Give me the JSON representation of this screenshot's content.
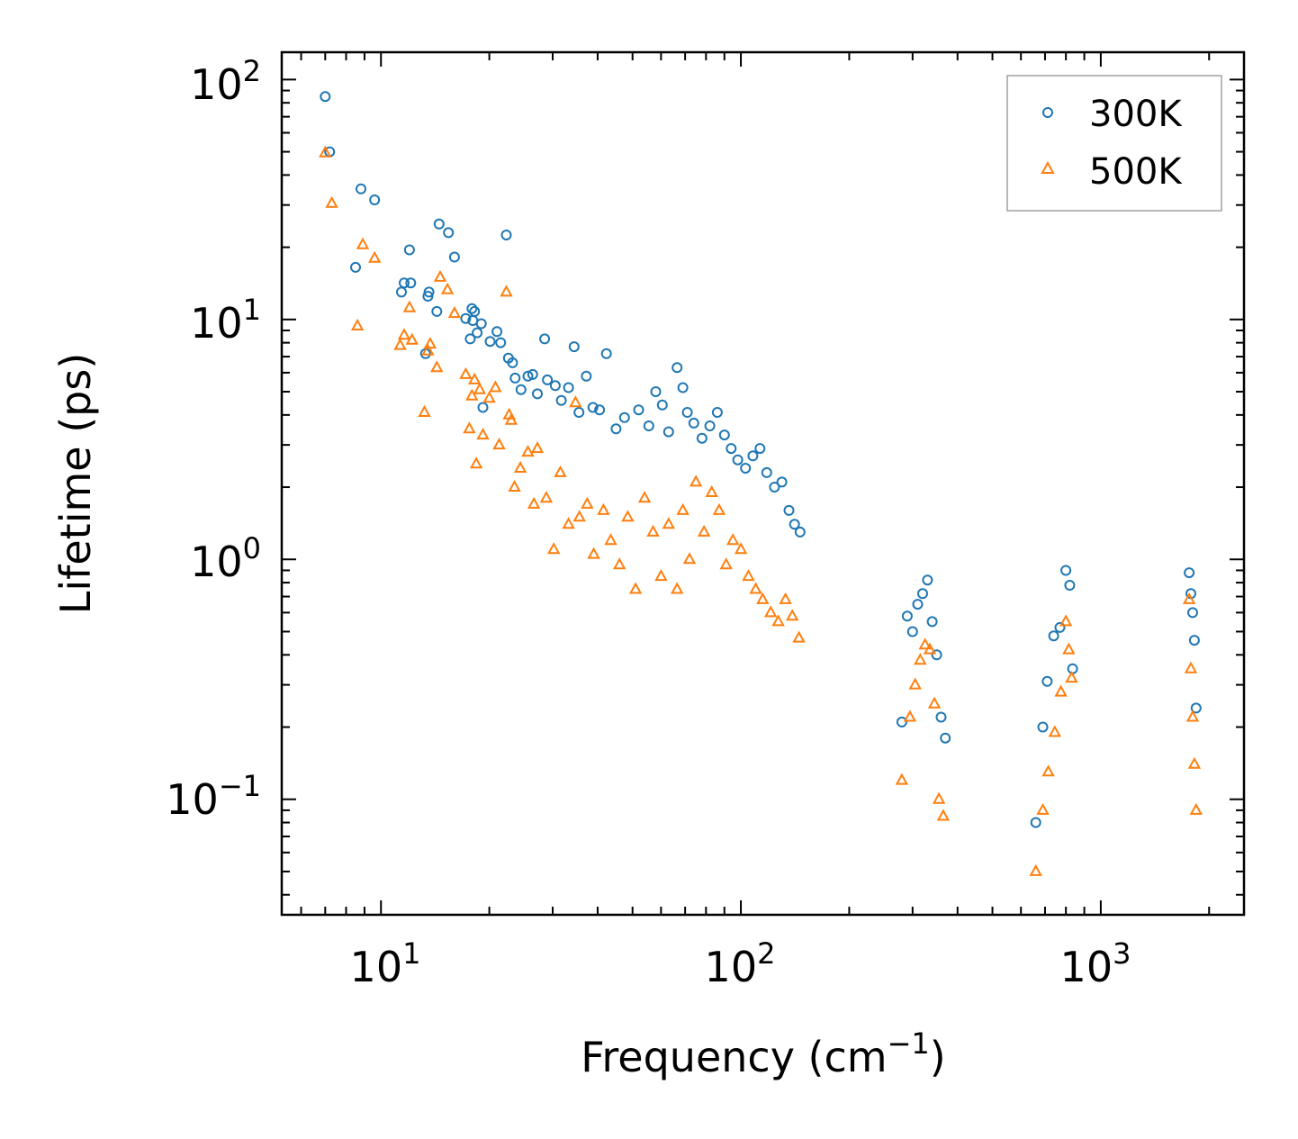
{
  "chart_data": {
    "type": "scatter",
    "title": "",
    "xlabel": "Frequency (cm",
    "xlabel_sup": "−1",
    "xlabel_close": ")",
    "ylabel": "Lifetime (ps)",
    "xscale": "log",
    "yscale": "log",
    "xlim": [
      5.3,
      2500
    ],
    "ylim": [
      0.033,
      130
    ],
    "legend_position": "top-right",
    "x_ticks": [
      {
        "value": 10,
        "base": "10",
        "exp": "1"
      },
      {
        "value": 100,
        "base": "10",
        "exp": "2"
      },
      {
        "value": 1000,
        "base": "10",
        "exp": "3"
      }
    ],
    "y_ticks": [
      {
        "value": 0.1,
        "base": "10",
        "exp": "−1"
      },
      {
        "value": 1,
        "base": "10",
        "exp": "0"
      },
      {
        "value": 10,
        "base": "10",
        "exp": "1"
      },
      {
        "value": 100,
        "base": "10",
        "exp": "2"
      }
    ],
    "series": [
      {
        "name": "300K",
        "color": "#1f77b4",
        "marker": "circle",
        "points": [
          [
            7.0,
            85
          ],
          [
            7.2,
            50
          ],
          [
            8.5,
            16.5
          ],
          [
            8.8,
            35
          ],
          [
            9.6,
            31.5
          ],
          [
            11.4,
            13
          ],
          [
            11.6,
            14.2
          ],
          [
            12.0,
            19.5
          ],
          [
            12.1,
            14.2
          ],
          [
            13.3,
            7.2
          ],
          [
            13.5,
            12.5
          ],
          [
            13.6,
            13.0
          ],
          [
            14.3,
            10.8
          ],
          [
            14.5,
            25
          ],
          [
            15.4,
            23
          ],
          [
            16.0,
            18.2
          ],
          [
            17.2,
            10.1
          ],
          [
            17.7,
            8.3
          ],
          [
            17.9,
            11.1
          ],
          [
            18.0,
            9.9
          ],
          [
            18.2,
            10.8
          ],
          [
            18.5,
            8.8
          ],
          [
            19.0,
            9.6
          ],
          [
            19.2,
            4.3
          ],
          [
            20.1,
            8.1
          ],
          [
            21.0,
            8.9
          ],
          [
            21.5,
            8.0
          ],
          [
            22.3,
            22.5
          ],
          [
            22.6,
            6.9
          ],
          [
            23.2,
            6.6
          ],
          [
            23.6,
            5.7
          ],
          [
            24.5,
            5.1
          ],
          [
            25.6,
            5.8
          ],
          [
            26.4,
            5.9
          ],
          [
            27.2,
            4.9
          ],
          [
            28.5,
            8.3
          ],
          [
            29.0,
            5.6
          ],
          [
            30.5,
            5.3
          ],
          [
            31.7,
            4.6
          ],
          [
            33.2,
            5.2
          ],
          [
            34.4,
            7.7
          ],
          [
            35.5,
            4.1
          ],
          [
            37.2,
            5.8
          ],
          [
            38.8,
            4.3
          ],
          [
            40.5,
            4.2
          ],
          [
            42.3,
            7.2
          ],
          [
            45.0,
            3.5
          ],
          [
            47.5,
            3.9
          ],
          [
            52.0,
            4.2
          ],
          [
            55.5,
            3.6
          ],
          [
            58.0,
            5.0
          ],
          [
            60.5,
            4.4
          ],
          [
            63.0,
            3.4
          ],
          [
            66.5,
            6.3
          ],
          [
            69.0,
            5.2
          ],
          [
            71.0,
            4.1
          ],
          [
            74.0,
            3.7
          ],
          [
            78.0,
            3.2
          ],
          [
            82.0,
            3.6
          ],
          [
            86.0,
            4.1
          ],
          [
            90.0,
            3.3
          ],
          [
            94.0,
            2.9
          ],
          [
            98.0,
            2.6
          ],
          [
            103.0,
            2.4
          ],
          [
            108.0,
            2.7
          ],
          [
            113.0,
            2.9
          ],
          [
            118.0,
            2.3
          ],
          [
            124.0,
            2.0
          ],
          [
            130.0,
            2.1
          ],
          [
            136.0,
            1.6
          ],
          [
            141.0,
            1.4
          ],
          [
            146.0,
            1.3
          ],
          [
            280.0,
            0.21
          ],
          [
            290.0,
            0.58
          ],
          [
            300.0,
            0.5
          ],
          [
            310.0,
            0.65
          ],
          [
            320.0,
            0.72
          ],
          [
            330.0,
            0.82
          ],
          [
            340.0,
            0.55
          ],
          [
            350.0,
            0.4
          ],
          [
            360.0,
            0.22
          ],
          [
            370.0,
            0.18
          ],
          [
            660.0,
            0.08
          ],
          [
            690.0,
            0.2
          ],
          [
            710.0,
            0.31
          ],
          [
            740.0,
            0.48
          ],
          [
            770.0,
            0.52
          ],
          [
            800.0,
            0.9
          ],
          [
            820.0,
            0.78
          ],
          [
            835.0,
            0.35
          ],
          [
            1760.0,
            0.88
          ],
          [
            1780.0,
            0.72
          ],
          [
            1800.0,
            0.6
          ],
          [
            1820.0,
            0.46
          ],
          [
            1840.0,
            0.24
          ]
        ]
      },
      {
        "name": "500K",
        "color": "#ff7f0e",
        "marker": "triangle",
        "points": [
          [
            7.0,
            49.5
          ],
          [
            7.3,
            30.5
          ],
          [
            8.6,
            9.4
          ],
          [
            8.9,
            20.5
          ],
          [
            9.6,
            18.0
          ],
          [
            11.3,
            7.8
          ],
          [
            11.6,
            8.6
          ],
          [
            12.0,
            11.2
          ],
          [
            12.2,
            8.2
          ],
          [
            13.2,
            4.1
          ],
          [
            13.5,
            7.4
          ],
          [
            13.7,
            7.9
          ],
          [
            14.3,
            6.3
          ],
          [
            14.6,
            15.0
          ],
          [
            15.3,
            13.3
          ],
          [
            16.0,
            10.6
          ],
          [
            17.2,
            5.9
          ],
          [
            17.6,
            3.5
          ],
          [
            17.9,
            4.8
          ],
          [
            18.2,
            5.6
          ],
          [
            18.4,
            2.5
          ],
          [
            18.8,
            5.1
          ],
          [
            19.2,
            3.3
          ],
          [
            20.0,
            4.7
          ],
          [
            20.8,
            5.2
          ],
          [
            21.3,
            3.0
          ],
          [
            22.3,
            13.0
          ],
          [
            22.7,
            4.0
          ],
          [
            23.0,
            3.8
          ],
          [
            23.5,
            2.0
          ],
          [
            24.4,
            2.4
          ],
          [
            25.6,
            2.8
          ],
          [
            26.6,
            1.7
          ],
          [
            27.2,
            2.9
          ],
          [
            28.8,
            1.8
          ],
          [
            30.2,
            1.1
          ],
          [
            31.5,
            2.3
          ],
          [
            33.2,
            1.4
          ],
          [
            34.7,
            4.5
          ],
          [
            35.6,
            1.5
          ],
          [
            37.4,
            1.7
          ],
          [
            39.0,
            1.05
          ],
          [
            41.5,
            1.6
          ],
          [
            43.5,
            1.2
          ],
          [
            46.0,
            0.95
          ],
          [
            48.5,
            1.5
          ],
          [
            51.0,
            0.75
          ],
          [
            54.0,
            1.8
          ],
          [
            57.0,
            1.3
          ],
          [
            60.0,
            0.85
          ],
          [
            63.0,
            1.4
          ],
          [
            66.5,
            0.75
          ],
          [
            69.0,
            1.6
          ],
          [
            72.0,
            1.0
          ],
          [
            75.0,
            2.1
          ],
          [
            79.0,
            1.3
          ],
          [
            83.0,
            1.9
          ],
          [
            87.0,
            1.6
          ],
          [
            91.0,
            0.95
          ],
          [
            95.0,
            1.2
          ],
          [
            100.0,
            1.1
          ],
          [
            105.0,
            0.85
          ],
          [
            110.0,
            0.75
          ],
          [
            115.0,
            0.68
          ],
          [
            121.0,
            0.6
          ],
          [
            127.0,
            0.55
          ],
          [
            133.0,
            0.68
          ],
          [
            139.0,
            0.58
          ],
          [
            145.0,
            0.47
          ],
          [
            280.0,
            0.12
          ],
          [
            295.0,
            0.22
          ],
          [
            305.0,
            0.3
          ],
          [
            315.0,
            0.38
          ],
          [
            325.0,
            0.44
          ],
          [
            335.0,
            0.42
          ],
          [
            345.0,
            0.25
          ],
          [
            355.0,
            0.1
          ],
          [
            365.0,
            0.085
          ],
          [
            660.0,
            0.05
          ],
          [
            690.0,
            0.09
          ],
          [
            715.0,
            0.13
          ],
          [
            745.0,
            0.19
          ],
          [
            775.0,
            0.28
          ],
          [
            800.0,
            0.55
          ],
          [
            815.0,
            0.42
          ],
          [
            830.0,
            0.32
          ],
          [
            1760.0,
            0.68
          ],
          [
            1780.0,
            0.35
          ],
          [
            1800.0,
            0.22
          ],
          [
            1820.0,
            0.14
          ],
          [
            1840.0,
            0.09
          ]
        ]
      }
    ]
  }
}
